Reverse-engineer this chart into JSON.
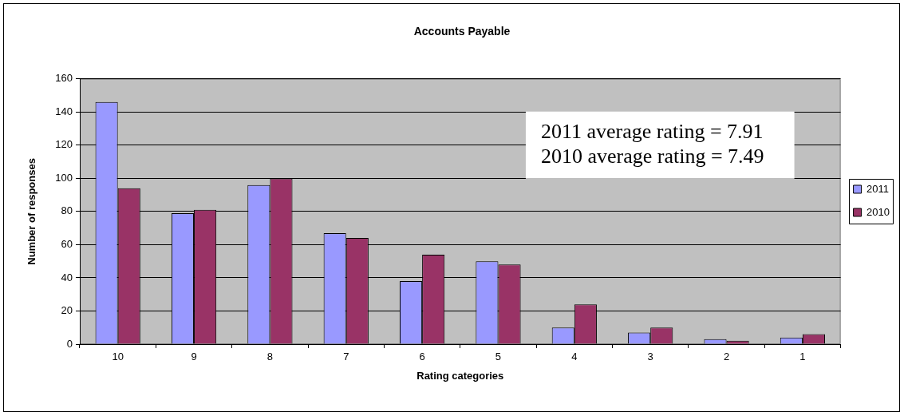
{
  "chart_data": {
    "type": "bar",
    "title": "Accounts Payable",
    "xlabel": "Rating categories",
    "ylabel": "Number of responses",
    "categories": [
      "10",
      "9",
      "8",
      "7",
      "6",
      "5",
      "4",
      "3",
      "2",
      "1"
    ],
    "series": [
      {
        "name": "2011",
        "color": "#9999ff",
        "values": [
          146,
          79,
          96,
          67,
          38,
          50,
          10,
          7,
          3,
          4
        ]
      },
      {
        "name": "2010",
        "color": "#993366",
        "values": [
          94,
          81,
          100,
          64,
          54,
          48,
          24,
          10,
          2,
          6
        ]
      }
    ],
    "ylim": [
      0,
      160
    ],
    "yticks": [
      0,
      20,
      40,
      60,
      80,
      100,
      120,
      140,
      160
    ],
    "grid": "y",
    "legend": "right",
    "annotations": [
      "2011 average rating = 7.91",
      "2010 average rating = 7.49"
    ]
  }
}
